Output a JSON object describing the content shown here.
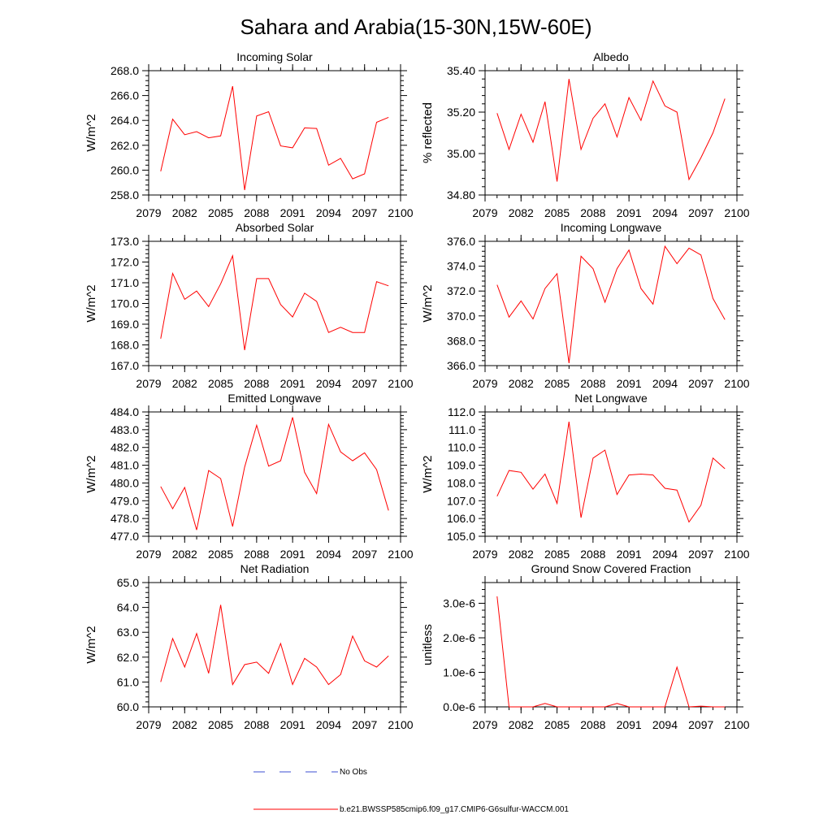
{
  "title": "Sahara and Arabia(15-30N,15W-60E)",
  "legend": {
    "obs_label": "No Obs",
    "model_label": "b.e21.BWSSP585cmip6.f09_g17.CMIP6-G6sulfur-WACCM.001",
    "model_color": "#ff0000",
    "obs_color": "#3b4fd0"
  },
  "chart_data": [
    {
      "type": "line",
      "title": "Incoming Solar",
      "ylabel": "W/m^2",
      "xlim": [
        2079,
        2100
      ],
      "xticks": [
        2079,
        2082,
        2085,
        2088,
        2091,
        2094,
        2097,
        2100
      ],
      "ylim": [
        258,
        268
      ],
      "yticks": [
        "258.0",
        "260.0",
        "262.0",
        "264.0",
        "266.0",
        "268.0"
      ],
      "x": [
        2080,
        2081,
        2082,
        2083,
        2084,
        2085,
        2086,
        2087,
        2088,
        2089,
        2090,
        2091,
        2092,
        2093,
        2094,
        2095,
        2096,
        2097,
        2098,
        2099
      ],
      "values": [
        259.9,
        264.1,
        262.85,
        263.1,
        262.6,
        262.75,
        266.75,
        258.4,
        264.35,
        264.7,
        261.95,
        261.8,
        263.4,
        263.35,
        260.4,
        260.95,
        259.3,
        259.7,
        263.85,
        264.25
      ]
    },
    {
      "type": "line",
      "title": "Albedo",
      "ylabel": "% reflected",
      "xlim": [
        2079,
        2100
      ],
      "xticks": [
        2079,
        2082,
        2085,
        2088,
        2091,
        2094,
        2097,
        2100
      ],
      "ylim": [
        34.8,
        35.4
      ],
      "yticks": [
        "34.80",
        "35.00",
        "35.20",
        "35.40"
      ],
      "x": [
        2080,
        2081,
        2082,
        2083,
        2084,
        2085,
        2086,
        2087,
        2088,
        2089,
        2090,
        2091,
        2092,
        2093,
        2094,
        2095,
        2096,
        2097,
        2098,
        2099
      ],
      "values": [
        35.195,
        35.02,
        35.19,
        35.055,
        35.25,
        34.865,
        35.36,
        35.02,
        35.17,
        35.24,
        35.08,
        35.27,
        35.16,
        35.35,
        35.23,
        35.2,
        34.875,
        34.98,
        35.1,
        35.265
      ]
    },
    {
      "type": "line",
      "title": "Absorbed Solar",
      "ylabel": "W/m^2",
      "xlim": [
        2079,
        2100
      ],
      "xticks": [
        2079,
        2082,
        2085,
        2088,
        2091,
        2094,
        2097,
        2100
      ],
      "ylim": [
        167,
        173
      ],
      "yticks": [
        "167.0",
        "168.0",
        "169.0",
        "170.0",
        "171.0",
        "172.0",
        "173.0"
      ],
      "x": [
        2080,
        2081,
        2082,
        2083,
        2084,
        2085,
        2086,
        2087,
        2088,
        2089,
        2090,
        2091,
        2092,
        2093,
        2094,
        2095,
        2096,
        2097,
        2098,
        2099
      ],
      "values": [
        168.3,
        171.45,
        170.2,
        170.6,
        169.85,
        170.95,
        172.3,
        167.75,
        171.2,
        171.2,
        169.95,
        169.35,
        170.5,
        170.1,
        168.6,
        168.85,
        168.6,
        168.6,
        171.05,
        170.85
      ]
    },
    {
      "type": "line",
      "title": "Incoming Longwave",
      "ylabel": "W/m^2",
      "xlim": [
        2079,
        2100
      ],
      "xticks": [
        2079,
        2082,
        2085,
        2088,
        2091,
        2094,
        2097,
        2100
      ],
      "ylim": [
        366,
        376
      ],
      "yticks": [
        "366.0",
        "368.0",
        "370.0",
        "372.0",
        "374.0",
        "376.0"
      ],
      "x": [
        2080,
        2081,
        2082,
        2083,
        2084,
        2085,
        2086,
        2087,
        2088,
        2089,
        2090,
        2091,
        2092,
        2093,
        2094,
        2095,
        2096,
        2097,
        2098,
        2099
      ],
      "values": [
        372.5,
        369.9,
        371.2,
        369.75,
        372.2,
        373.4,
        366.2,
        374.8,
        373.8,
        371.1,
        373.8,
        375.3,
        372.2,
        370.95,
        375.6,
        374.2,
        375.45,
        374.9,
        371.4,
        369.7
      ]
    },
    {
      "type": "line",
      "title": "Emitted Longwave",
      "ylabel": "W/m^2",
      "xlim": [
        2079,
        2100
      ],
      "xticks": [
        2079,
        2082,
        2085,
        2088,
        2091,
        2094,
        2097,
        2100
      ],
      "ylim": [
        477,
        484
      ],
      "yticks": [
        "477.0",
        "478.0",
        "479.0",
        "480.0",
        "481.0",
        "482.0",
        "483.0",
        "484.0"
      ],
      "x": [
        2080,
        2081,
        2082,
        2083,
        2084,
        2085,
        2086,
        2087,
        2088,
        2089,
        2090,
        2091,
        2092,
        2093,
        2094,
        2095,
        2096,
        2097,
        2098,
        2099
      ],
      "values": [
        479.8,
        478.55,
        479.75,
        477.35,
        480.7,
        480.25,
        477.55,
        480.9,
        483.25,
        480.95,
        481.25,
        483.7,
        480.6,
        479.4,
        483.3,
        481.75,
        481.25,
        481.7,
        480.75,
        478.45
      ]
    },
    {
      "type": "line",
      "title": "Net Longwave",
      "ylabel": "W/m^2",
      "xlim": [
        2079,
        2100
      ],
      "xticks": [
        2079,
        2082,
        2085,
        2088,
        2091,
        2094,
        2097,
        2100
      ],
      "ylim": [
        105,
        112
      ],
      "yticks": [
        "105.0",
        "106.0",
        "107.0",
        "108.0",
        "109.0",
        "110.0",
        "111.0",
        "112.0"
      ],
      "x": [
        2080,
        2081,
        2082,
        2083,
        2084,
        2085,
        2086,
        2087,
        2088,
        2089,
        2090,
        2091,
        2092,
        2093,
        2094,
        2095,
        2096,
        2097,
        2098,
        2099
      ],
      "values": [
        107.25,
        108.7,
        108.6,
        107.65,
        108.5,
        106.85,
        111.45,
        106.05,
        109.4,
        109.85,
        107.35,
        108.45,
        108.5,
        108.45,
        107.7,
        107.6,
        105.8,
        106.75,
        109.4,
        108.8
      ]
    },
    {
      "type": "line",
      "title": "Net Radiation",
      "ylabel": "W/m^2",
      "xlim": [
        2079,
        2100
      ],
      "xticks": [
        2079,
        2082,
        2085,
        2088,
        2091,
        2094,
        2097,
        2100
      ],
      "ylim": [
        60,
        65
      ],
      "yticks": [
        "60.0",
        "61.0",
        "62.0",
        "63.0",
        "64.0",
        "65.0"
      ],
      "x": [
        2080,
        2081,
        2082,
        2083,
        2084,
        2085,
        2086,
        2087,
        2088,
        2089,
        2090,
        2091,
        2092,
        2093,
        2094,
        2095,
        2096,
        2097,
        2098,
        2099
      ],
      "values": [
        61.0,
        62.75,
        61.6,
        62.95,
        61.35,
        64.1,
        60.9,
        61.7,
        61.8,
        61.35,
        62.55,
        60.9,
        61.95,
        61.6,
        60.9,
        61.3,
        62.85,
        61.85,
        61.6,
        62.05
      ]
    },
    {
      "type": "line",
      "title": "Ground Snow Covered Fraction",
      "ylabel": "unitless",
      "xlim": [
        2079,
        2100
      ],
      "xticks": [
        2079,
        2082,
        2085,
        2088,
        2091,
        2094,
        2097,
        2100
      ],
      "ylim": [
        0,
        3.6e-06
      ],
      "ytick_values": [
        0,
        1e-06,
        2e-06,
        3e-06
      ],
      "yticks": [
        "0.0e-6",
        "1.0e-6",
        "2.0e-6",
        "3.0e-6"
      ],
      "x": [
        2080,
        2081,
        2082,
        2083,
        2084,
        2085,
        2086,
        2087,
        2088,
        2089,
        2090,
        2091,
        2092,
        2093,
        2094,
        2095,
        2096,
        2097,
        2098,
        2099
      ],
      "values": [
        3.2e-06,
        0,
        0,
        0,
        1e-07,
        0,
        0,
        0,
        0,
        0,
        1e-07,
        0,
        0,
        0,
        0,
        1.15e-06,
        0,
        2e-08,
        0,
        0
      ]
    }
  ]
}
